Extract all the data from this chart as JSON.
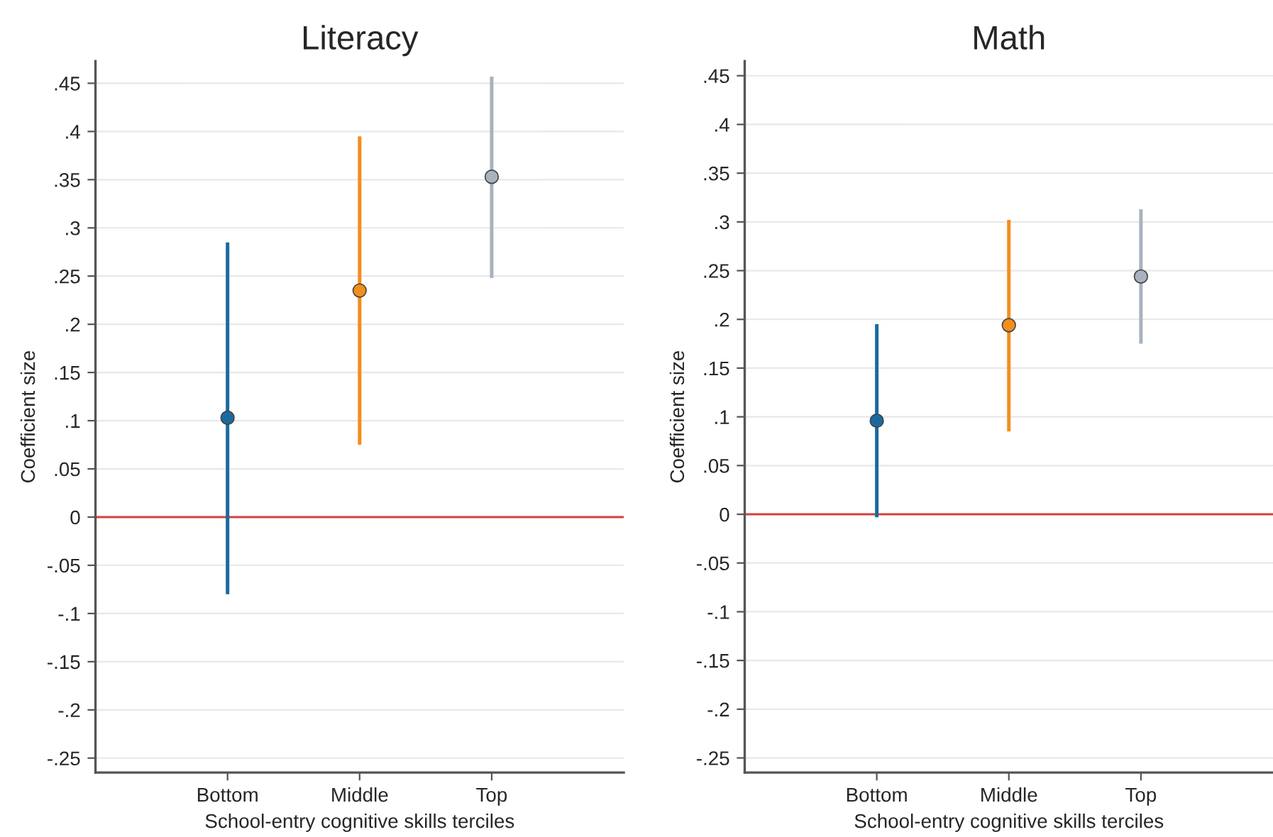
{
  "chart_data": [
    {
      "type": "scatter",
      "title": "Literacy",
      "xlabel": "School-entry cognitive skills terciles",
      "ylabel": "Coefficient size",
      "categories": [
        "Bottom",
        "Middle",
        "Top"
      ],
      "values": [
        0.103,
        0.235,
        0.353
      ],
      "errors": [
        [
          -0.08,
          0.285
        ],
        [
          0.075,
          0.395
        ],
        [
          0.248,
          0.457
        ]
      ],
      "colors": [
        "#1a6aa0",
        "#f28e1c",
        "#a8b3bf"
      ],
      "marker": "circle",
      "grid": "y",
      "ylim": [
        -0.265,
        0.473
      ],
      "yticks": [
        {
          "value": -0.25,
          "label": "-.25"
        },
        {
          "value": -0.2,
          "label": "-.2"
        },
        {
          "value": -0.15,
          "label": "-.15"
        },
        {
          "value": -0.1,
          "label": "-.1"
        },
        {
          "value": -0.05,
          "label": "-.05"
        },
        0,
        {
          "value": 0.05,
          "label": ".05"
        },
        {
          "value": 0.1,
          "label": ".1"
        },
        {
          "value": 0.15,
          "label": ".15"
        },
        {
          "value": 0.2,
          "label": ".2"
        },
        {
          "value": 0.25,
          "label": ".25"
        },
        {
          "value": 0.3,
          "label": ".3"
        },
        {
          "value": 0.35,
          "label": ".35"
        },
        {
          "value": 0.4,
          "label": ".4"
        },
        {
          "value": 0.45,
          "label": ".45"
        }
      ],
      "ref_lines": [
        {
          "axis": "y",
          "value": 0,
          "color": "#d0423b"
        }
      ]
    },
    {
      "type": "scatter",
      "title": "Math",
      "xlabel": "School-entry cognitive skills terciles",
      "ylabel": "Coefficient size",
      "categories": [
        "Bottom",
        "Middle",
        "Top"
      ],
      "values": [
        0.096,
        0.194,
        0.244
      ],
      "errors": [
        [
          -0.003,
          0.195
        ],
        [
          0.085,
          0.302
        ],
        [
          0.175,
          0.313
        ]
      ],
      "colors": [
        "#1a6aa0",
        "#f28e1c",
        "#a8b3bf"
      ],
      "marker": "circle",
      "grid": "y",
      "ylim": [
        -0.265,
        0.465
      ],
      "yticks": [
        {
          "value": -0.25,
          "label": "-.25"
        },
        {
          "value": -0.2,
          "label": "-.2"
        },
        {
          "value": -0.15,
          "label": "-.15"
        },
        {
          "value": -0.1,
          "label": "-.1"
        },
        {
          "value": -0.05,
          "label": "-.05"
        },
        0,
        {
          "value": 0.05,
          "label": ".05"
        },
        {
          "value": 0.1,
          "label": ".1"
        },
        {
          "value": 0.15,
          "label": ".15"
        },
        {
          "value": 0.2,
          "label": ".2"
        },
        {
          "value": 0.25,
          "label": ".25"
        },
        {
          "value": 0.3,
          "label": ".3"
        },
        {
          "value": 0.35,
          "label": ".35"
        },
        {
          "value": 0.4,
          "label": ".4"
        },
        {
          "value": 0.45,
          "label": ".45"
        }
      ],
      "ref_lines": [
        {
          "axis": "y",
          "value": 0,
          "color": "#d0423b"
        }
      ]
    }
  ]
}
